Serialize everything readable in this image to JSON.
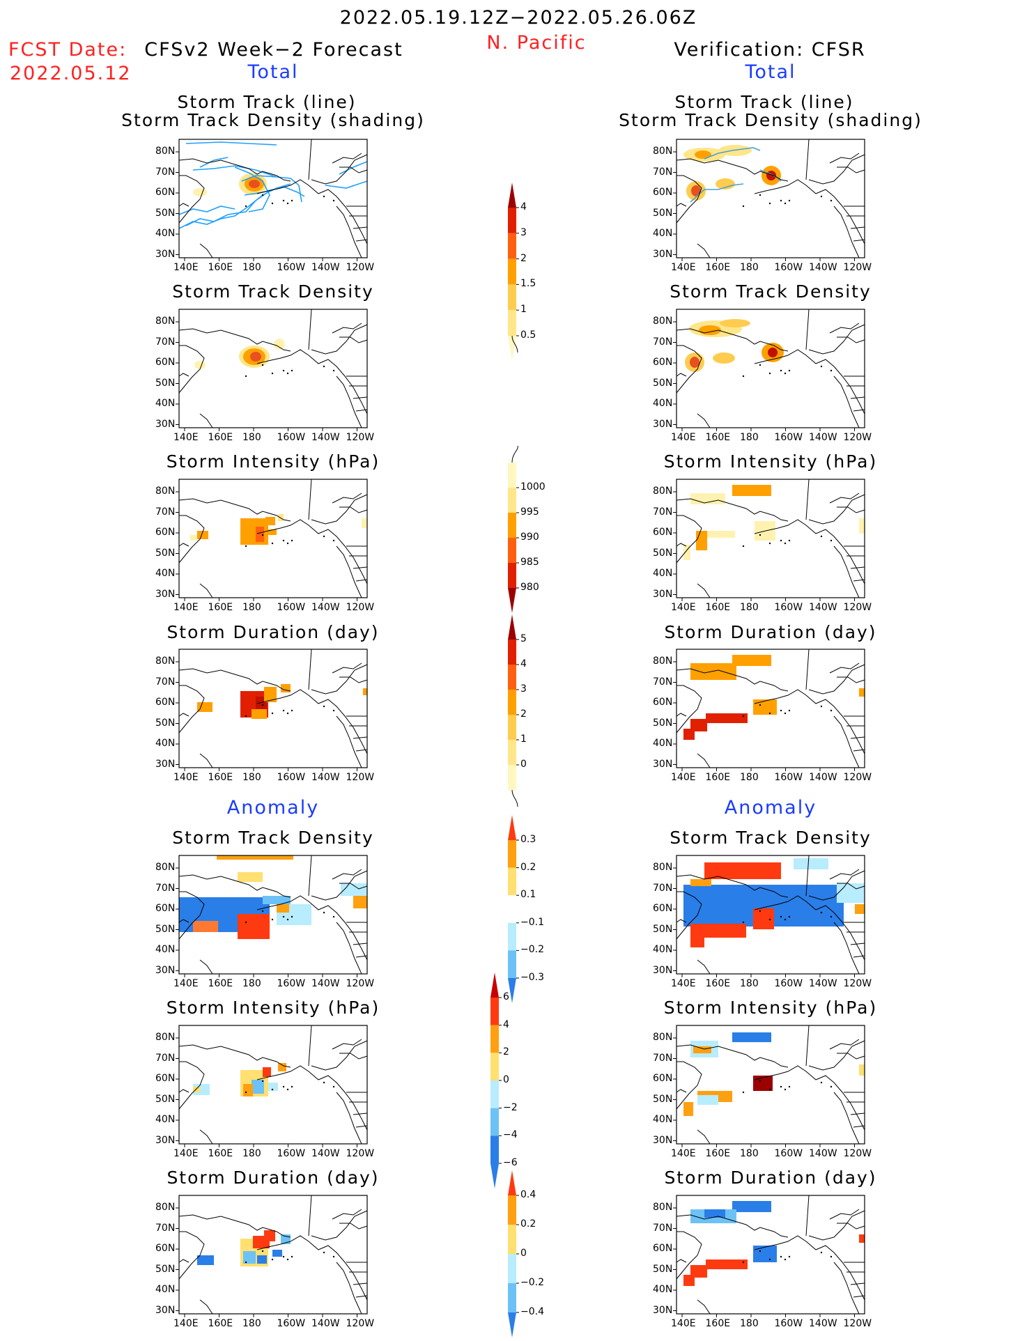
{
  "header": {
    "date_range": "2022.05.19.12Z−2022.05.26.06Z",
    "region": "N. Pacific",
    "fcst_label": "FCST Date:",
    "fcst_date": "2022.05.12",
    "forecast_title": "CFSv2 Week−2 Forecast",
    "verification_title": "Verification: CFSR",
    "total_label": "Total",
    "anomaly_label": "Anomaly"
  },
  "panel_titles": {
    "track_line": "Storm Track (line)",
    "track_density_shading": "Storm Track Density (shading)",
    "track_density": "Storm Track Density",
    "intensity": "Storm Intensity (hPa)",
    "duration": "Storm Duration (day)"
  },
  "axes": {
    "lat_labels": [
      "80N",
      "70N",
      "60N",
      "50N",
      "40N",
      "30N"
    ],
    "lon_labels": [
      "140E",
      "160E",
      "180",
      "160W",
      "140W",
      "120W"
    ]
  },
  "colorbars": {
    "density_total": {
      "labels": [
        "4",
        "3",
        "2",
        "1.5",
        "1",
        "0.5"
      ],
      "colors": [
        "#9c0000",
        "#e02000",
        "#ff6010",
        "#ffa000",
        "#ffcc50",
        "#ffe68a",
        "#fff7c0"
      ]
    },
    "intensity_total": {
      "labels": [
        "1000",
        "995",
        "990",
        "985",
        "980"
      ],
      "colors": [
        "#fff7c0",
        "#ffe68a",
        "#ffa000",
        "#ff6010",
        "#e02000",
        "#9c0000"
      ]
    },
    "duration_total": {
      "labels": [
        "5",
        "4",
        "3",
        "2",
        "1",
        "0"
      ],
      "colors": [
        "#9c0000",
        "#e02000",
        "#ff6010",
        "#ffa000",
        "#ffcc50",
        "#ffe68a",
        "#fff7c0"
      ]
    },
    "density_anom": {
      "labels": [
        "0.3",
        "0.2",
        "0.1",
        "−0.1",
        "−0.2",
        "−0.3"
      ],
      "colors": [
        "#ff3a10",
        "#ffa010",
        "#ffe070",
        "#ffffff",
        "#b8ecff",
        "#6cc2f6",
        "#2a7ee8"
      ]
    },
    "intensity_anom": {
      "labels": [
        "6",
        "4",
        "2",
        "0",
        "−2",
        "−4",
        "−6"
      ],
      "colors": [
        "#c80000",
        "#ff3a10",
        "#ffa010",
        "#ffe070",
        "#b8ecff",
        "#6cc2f6",
        "#2a7ee8",
        "#2a7ee8"
      ]
    },
    "duration_anom": {
      "labels": [
        "0.4",
        "0.2",
        "0",
        "−0.2",
        "−0.4"
      ],
      "colors": [
        "#ff3a10",
        "#ffa010",
        "#ffe070",
        "#b8ecff",
        "#6cc2f6",
        "#2a7ee8"
      ]
    }
  },
  "colors": {
    "forecast_track_lines": "#1ea0ff",
    "verification_track_lines": "#4aa0d0"
  }
}
